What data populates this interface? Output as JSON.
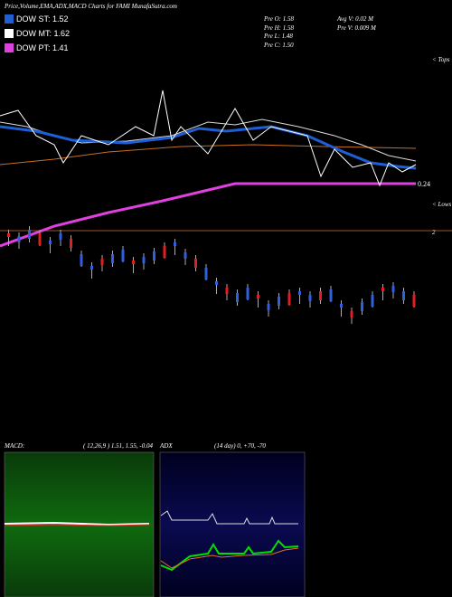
{
  "header": {
    "title": "Price,Volume,EMA,ADX,MACD Charts for FAMI MunafaSutra.com"
  },
  "legend": [
    {
      "label": "DOW ST: 1.52",
      "color": "#1f5fd6"
    },
    {
      "label": "DOW MT: 1.62",
      "color": "#ffffff"
    },
    {
      "label": "DOW PT: 1.41",
      "color": "#e040e0"
    }
  ],
  "info": {
    "left": [
      "Pre  O: 1.58",
      "Pre  H: 1.58",
      "Pre  L: 1.48",
      "Pre  C: 1.50"
    ],
    "right": [
      "Avg V: 0.02  M",
      "Pre  V: 0.009 M"
    ]
  },
  "price_panel": {
    "tops": "< Tops",
    "lows": "< Lows",
    "last_label": "0.24",
    "volume_label": "2"
  },
  "macd": {
    "title": "MACD:",
    "params": "( 12,26,9 ) 1.51, 1.55, -0.04"
  },
  "adx": {
    "title": "ADX",
    "params": "(14  day) 0, +70, -70"
  }
}
